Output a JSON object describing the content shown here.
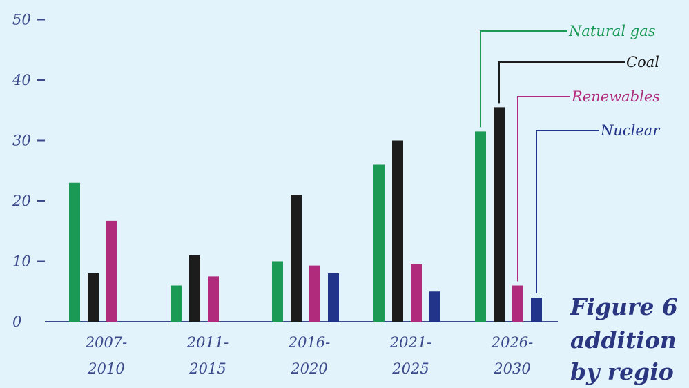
{
  "chart_data": {
    "type": "bar",
    "categories": [
      [
        "2007-",
        "2010"
      ],
      [
        "2011-",
        "2015"
      ],
      [
        "2016-",
        "2020"
      ],
      [
        "2021-",
        "2025"
      ],
      [
        "2026-",
        "2030"
      ]
    ],
    "series": [
      {
        "name": "Natural gas",
        "color": "#1b9a55",
        "values": [
          23,
          6,
          10,
          26,
          31.5
        ]
      },
      {
        "name": "Coal",
        "color": "#1c1c1c",
        "values": [
          8,
          11,
          21,
          30,
          35.5
        ]
      },
      {
        "name": "Renewables",
        "color": "#b02b7c",
        "values": [
          16.7,
          7.5,
          9.3,
          9.5,
          6
        ]
      },
      {
        "name": "Nuclear",
        "color": "#22338a",
        "values": [
          null,
          null,
          8,
          5,
          4
        ]
      }
    ],
    "yticks": [
      "0",
      "10",
      "20",
      "30",
      "40",
      "50"
    ],
    "ylim": [
      0,
      50
    ],
    "legend_placement": "top-right, leader lines to last group",
    "caption": [
      "Figure 6",
      "addition",
      "by regio"
    ],
    "grid": false
  }
}
